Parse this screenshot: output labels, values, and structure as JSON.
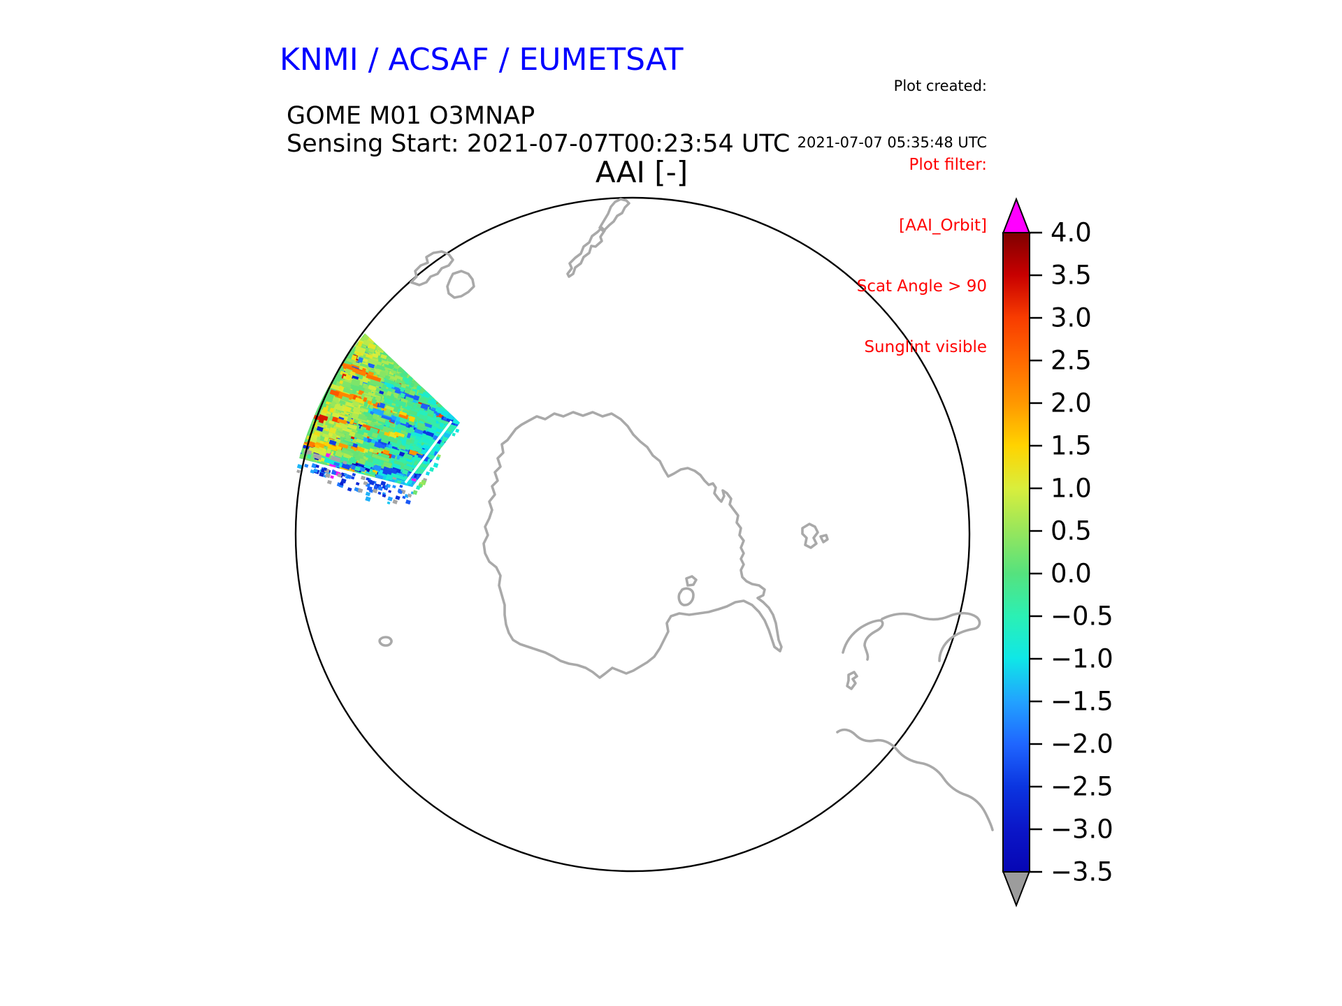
{
  "header": {
    "institute": "KNMI / ACSAF / EUMETSAT",
    "created_label": "Plot created:",
    "created_time": "2021-07-07 05:35:48 UTC",
    "product": "GOME M01 O3MNAP",
    "sensing_start": "Sensing Start: 2021-07-07T00:23:54 UTC"
  },
  "map": {
    "title": "AAI [-]"
  },
  "filter_note": {
    "lines": [
      "Plot filter:",
      "[AAI_Orbit]",
      "Scat Angle > 90",
      "Sunglint visible"
    ]
  },
  "colors": {
    "title_blue": "#0000ff",
    "filter_red": "#ff0000",
    "coastline_gray": "#a9a9a9",
    "circle_black": "#000000"
  },
  "chart_data": {
    "type": "heatmap",
    "title": "AAI [-]",
    "variable": "AAI",
    "units": "-",
    "projection": "south polar stereographic, Antarctica centered",
    "legend_position": "right vertical colorbar",
    "colorbar": {
      "vmin": -3.5,
      "vmax": 4.0,
      "tick_step": 0.5,
      "over_color": "#ff00ff",
      "under_color": "#9c9c9c",
      "ticks": [
        {
          "value": 4.0,
          "label": "4.0"
        },
        {
          "value": 3.5,
          "label": "3.5"
        },
        {
          "value": 3.0,
          "label": "3.0"
        },
        {
          "value": 2.5,
          "label": "2.5"
        },
        {
          "value": 2.0,
          "label": "2.0"
        },
        {
          "value": 1.5,
          "label": "1.5"
        },
        {
          "value": 1.0,
          "label": "1.0"
        },
        {
          "value": 0.5,
          "label": "0.5"
        },
        {
          "value": 0.0,
          "label": "0.0"
        },
        {
          "value": -0.5,
          "label": "−0.5"
        },
        {
          "value": -1.0,
          "label": "−1.0"
        },
        {
          "value": -1.5,
          "label": "−1.5"
        },
        {
          "value": -2.0,
          "label": "−2.0"
        },
        {
          "value": -2.5,
          "label": "−2.5"
        },
        {
          "value": -3.0,
          "label": "−3.0"
        },
        {
          "value": -3.5,
          "label": "−3.5"
        }
      ],
      "colormap": [
        {
          "value": 4.0,
          "color": "#7f0000"
        },
        {
          "value": 3.5,
          "color": "#c80000"
        },
        {
          "value": 3.0,
          "color": "#f83c00"
        },
        {
          "value": 2.5,
          "color": "#ff6900"
        },
        {
          "value": 2.0,
          "color": "#ff9800"
        },
        {
          "value": 1.5,
          "color": "#ffd300"
        },
        {
          "value": 1.0,
          "color": "#d9ee3c"
        },
        {
          "value": 0.5,
          "color": "#97e65c"
        },
        {
          "value": 0.0,
          "color": "#55e27e"
        },
        {
          "value": -0.5,
          "color": "#2bf0b4"
        },
        {
          "value": -1.0,
          "color": "#0fe7e7"
        },
        {
          "value": -1.5,
          "color": "#22a2ff"
        },
        {
          "value": -2.0,
          "color": "#1f66ff"
        },
        {
          "value": -2.5,
          "color": "#0b35e0"
        },
        {
          "value": -3.0,
          "color": "#0b16c8"
        },
        {
          "value": -3.5,
          "color": "#0606b4"
        }
      ]
    },
    "swath": {
      "description": "single orbit measurement swath in upper-left of polar map, mostly green/cyan with yellow, orange-red and blue streaks; scattered blue/gray/magenta pixels along lower edge",
      "typical_value_range": [
        -1.5,
        1.5
      ],
      "observed_extremes": [
        -3.0,
        3.0
      ]
    }
  }
}
